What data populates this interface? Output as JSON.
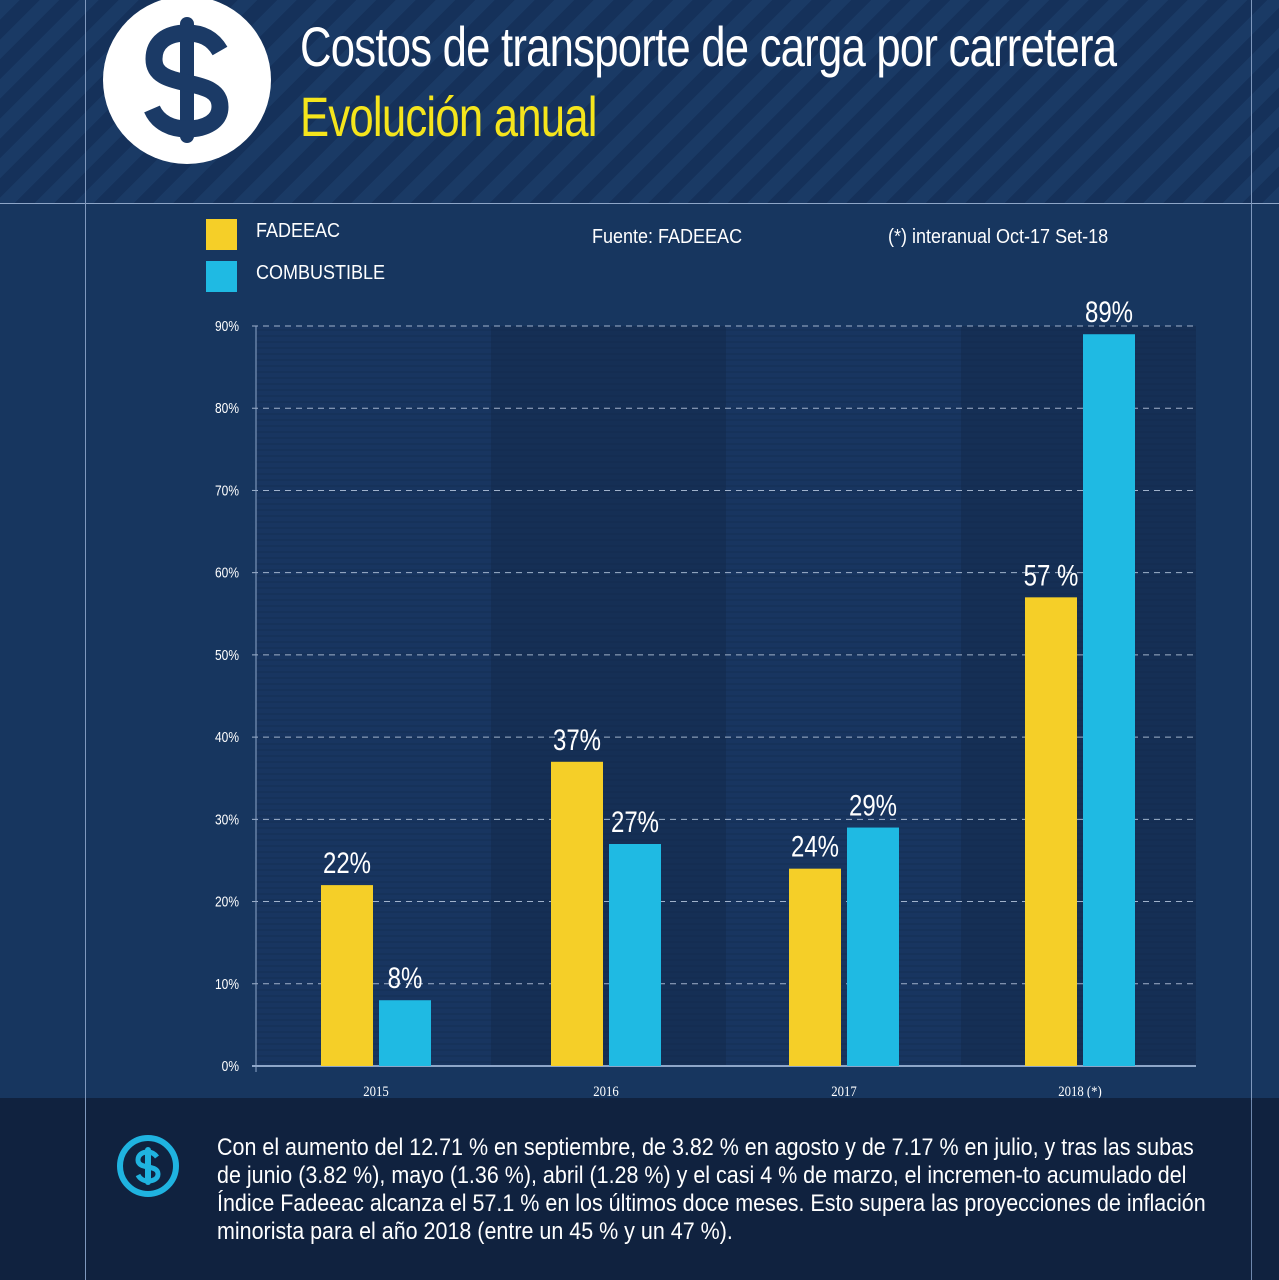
{
  "header": {
    "title": "Costos de transporte de carga por carretera",
    "subtitle": "Evolución anual",
    "logo_icon": "dollar-icon"
  },
  "legend": {
    "items": [
      {
        "label": "FADEEAC",
        "color": "#f5cf28"
      },
      {
        "label": "COMBUSTIBLE",
        "color": "#1fbae3"
      }
    ]
  },
  "source_note": "Fuente: FADEEAC",
  "asterisk_note": "(*)  interanual Oct-17 Set-18",
  "colors": {
    "fadeeac": "#f5cf28",
    "combustible": "#1fbae3",
    "title_yellow": "#f5e51c",
    "background": "#17365f",
    "footer_background": "#10223f"
  },
  "chart_data": {
    "type": "bar",
    "title": "Costos de transporte de carga por carretera — Evolución anual",
    "xlabel": "",
    "ylabel": "",
    "categories": [
      "2015",
      "2016",
      "2017",
      "2018 (*)"
    ],
    "series": [
      {
        "name": "FADEEAC",
        "values": [
          22,
          37,
          24,
          57
        ],
        "labels": [
          "22%",
          "37%",
          "24%",
          "57 %"
        ]
      },
      {
        "name": "COMBUSTIBLE",
        "values": [
          8,
          27,
          29,
          89
        ],
        "labels": [
          "8%",
          "27%",
          "29%",
          "89%"
        ]
      }
    ],
    "ylim": [
      0,
      90
    ],
    "yticks": [
      "0%",
      "10%",
      "20%",
      "30%",
      "40%",
      "50%",
      "60%",
      "70%",
      "80%",
      "90%"
    ],
    "grid": true,
    "legend": "top-left"
  },
  "footer": {
    "icon": "dollar-circle-icon",
    "text": "Con el aumento del 12.71 % en septiembre, de 3.82 % en agosto y de 7.17 % en julio, y tras las subas de junio (3.82 %), mayo (1.36 %), abril (1.28 %) y el casi 4 % de marzo, el incremen-to acumulado del Índice Fadeeac alcanza el 57.1 % en los últimos doce meses. Esto supera las proyecciones de inflación minorista para el año 2018  (entre un 45 % y un 47 %)."
  }
}
